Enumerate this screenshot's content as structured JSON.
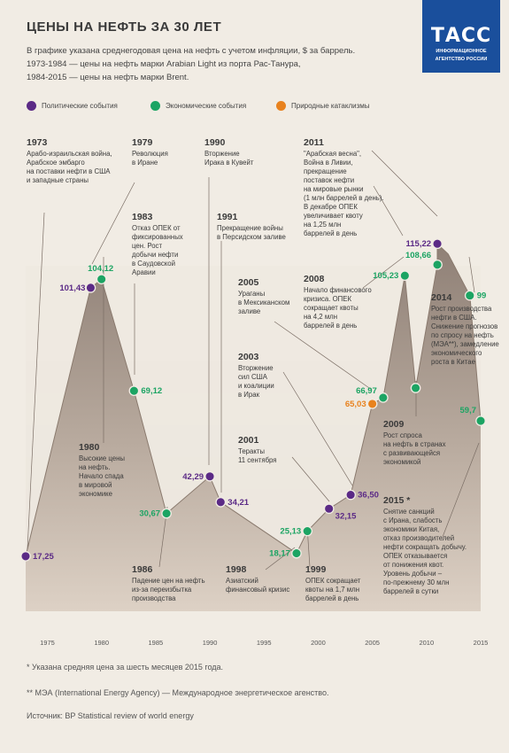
{
  "title": "ЦЕНЫ НА НЕФТЬ ЗА 30 ЛЕТ",
  "subtitle": [
    "В графике указана среднегодовая цена на нефть с учетом инфляции, $ за баррель.",
    "1973-1984 — цены на нефть марки Arabian Light из порта Рас-Танура,",
    "1984-2015 — цены на нефть марки Brent."
  ],
  "logo": {
    "mark": "ТАСС",
    "sub1": "ИНФОРМАЦИОННОЕ",
    "sub2": "АГЕНТСТВО РОССИИ"
  },
  "colors": {
    "political": "#5b2a86",
    "economic": "#1ca463",
    "natural": "#e8821e",
    "area": "#a39488"
  },
  "legend": [
    {
      "label": "Политические события",
      "category": "political"
    },
    {
      "label": "Экономические события",
      "category": "economic"
    },
    {
      "label": "Природные катаклизмы",
      "category": "natural"
    }
  ],
  "footnotes": [
    "* Указана средняя цена за шесть месяцев 2015 года.",
    "** МЭА (International Energy Agency) — Международное энергетическое агенство.",
    "Источник: BP Statistical review of world energy"
  ],
  "chart_data": {
    "type": "area",
    "xlim": [
      1973,
      2015
    ],
    "ylim": [
      0,
      120
    ],
    "x_ticks": [
      1975,
      1980,
      1985,
      1990,
      1995,
      2000,
      2005,
      2010,
      2015
    ],
    "grid": false,
    "series_points": [
      [
        1973,
        17.25
      ],
      [
        1979,
        101.43
      ],
      [
        1980,
        104.12
      ],
      [
        1983,
        69.12
      ],
      [
        1986,
        30.67
      ],
      [
        1990,
        42.29
      ],
      [
        1991,
        34.21
      ],
      [
        1998,
        18.17
      ],
      [
        1999,
        25.13
      ],
      [
        2001,
        32.15
      ],
      [
        2003,
        36.5
      ],
      [
        2005,
        65.03
      ],
      [
        2006,
        66.97
      ],
      [
        2008,
        105.23
      ],
      [
        2009,
        70.0
      ],
      [
        2011,
        108.66
      ],
      [
        2011,
        115.22
      ],
      [
        2012,
        112.0
      ],
      [
        2014,
        99.0
      ],
      [
        2015,
        59.7
      ]
    ],
    "markers": [
      {
        "year": 1973,
        "value": 17.25,
        "label": "17,25",
        "category": "political"
      },
      {
        "year": 1979,
        "value": 101.43,
        "label": "101,43",
        "category": "political"
      },
      {
        "year": 1980,
        "value": 104.12,
        "label": "104,12",
        "category": "economic"
      },
      {
        "year": 1983,
        "value": 69.12,
        "label": "69,12",
        "category": "economic"
      },
      {
        "year": 1986,
        "value": 30.67,
        "label": "30,67",
        "category": "economic"
      },
      {
        "year": 1990,
        "value": 42.29,
        "label": "42,29",
        "category": "political"
      },
      {
        "year": 1991,
        "value": 34.21,
        "label": "34,21",
        "category": "political"
      },
      {
        "year": 1998,
        "value": 18.17,
        "label": "18,17",
        "category": "economic"
      },
      {
        "year": 1999,
        "value": 25.13,
        "label": "25,13",
        "category": "economic"
      },
      {
        "year": 2001,
        "value": 32.15,
        "label": "32,15",
        "category": "political"
      },
      {
        "year": 2003,
        "value": 36.5,
        "label": "36,50",
        "category": "political"
      },
      {
        "year": 2005,
        "value": 65.03,
        "label": "65,03",
        "category": "natural"
      },
      {
        "year": 2006,
        "value": 66.97,
        "label": "66,97",
        "category": "economic"
      },
      {
        "year": 2008,
        "value": 105.23,
        "label": "105,23",
        "category": "economic"
      },
      {
        "year": 2009,
        "value": 70.0,
        "label": "",
        "category": "economic"
      },
      {
        "year": 2011,
        "value": 108.66,
        "label": "108,66",
        "category": "economic"
      },
      {
        "year": 2011,
        "value": 115.22,
        "label": "115,22",
        "category": "political"
      },
      {
        "year": 2014,
        "value": 99.0,
        "label": "99",
        "category": "economic"
      },
      {
        "year": 2015,
        "value": 59.7,
        "label": "59,7",
        "category": "economic"
      }
    ],
    "events": [
      {
        "year_label": "1973",
        "lines": [
          "Арабо-израильская война,",
          "Арабское эмбарго",
          "на поставки нефти в США",
          "и западные страны"
        ]
      },
      {
        "year_label": "1979",
        "lines": [
          "Революция",
          "в Иране"
        ]
      },
      {
        "year_label": "1990",
        "lines": [
          "Вторжение",
          "Ирака в Кувейт"
        ]
      },
      {
        "year_label": "2011",
        "lines": [
          "\"Арабская весна\",",
          "Война в Ливии,",
          "прекращение",
          "поставок нефти",
          "на мировые рынки",
          "(1 млн баррелей в день).",
          "В декабре ОПЕК",
          "увеличивает квоту",
          "на 1,25 млн",
          "баррелей в день"
        ]
      },
      {
        "year_label": "1983",
        "lines": [
          "Отказ ОПЕК от",
          "фиксированных",
          "цен. Рост",
          "добычи нефти",
          "в Саудовской",
          "Аравии"
        ]
      },
      {
        "year_label": "1991",
        "lines": [
          "Прекращение войны",
          "в Персидском заливе"
        ]
      },
      {
        "year_label": "2005",
        "lines": [
          "Ураганы",
          "в Мексиканском",
          "заливе"
        ]
      },
      {
        "year_label": "2008",
        "lines": [
          "Начало финансового",
          "кризиса. ОПЕК",
          "сокращает квоты",
          "на 4,2 млн",
          "баррелей в день"
        ]
      },
      {
        "year_label": "2014",
        "lines": [
          "Рост производства",
          "нефти в США.",
          "Снижение прогнозов",
          "по спросу на нефть",
          "(МЭА**), замедление",
          "экономического",
          "роста в Китае"
        ]
      },
      {
        "year_label": "2003",
        "lines": [
          "Вторжение",
          "сил США",
          "и коалиции",
          "в Ирак"
        ]
      },
      {
        "year_label": "2009",
        "lines": [
          "Рост спроса",
          "на нефть в странах",
          "с развивающейся",
          "экономикой"
        ]
      },
      {
        "year_label": "1980",
        "lines": [
          "Высокие цены",
          "на нефть.",
          "Начало спада",
          "в мировой",
          "экономике"
        ]
      },
      {
        "year_label": "2001",
        "lines": [
          "Теракты",
          "11 сентября"
        ]
      },
      {
        "year_label": "2015 *",
        "lines": [
          "Снятие санкций",
          "с Ирана, слабость",
          "экономики Китая,",
          "отказ производителей",
          "нефти сокращать добычу.",
          "ОПЕК отказывается",
          "от понижения квот.",
          "Уровень добычи –",
          "по-прежнему 30 млн",
          "баррелей в сутки"
        ]
      },
      {
        "year_label": "1986",
        "lines": [
          "Падение цен на нефть",
          "из-за переизбытка",
          "производства"
        ]
      },
      {
        "year_label": "1998",
        "lines": [
          "Азиатский",
          "финансовый кризис"
        ]
      },
      {
        "year_label": "1999",
        "lines": [
          "ОПЕК сокращает",
          "квоты на 1,7 млн",
          "баррелей в день"
        ]
      }
    ]
  }
}
